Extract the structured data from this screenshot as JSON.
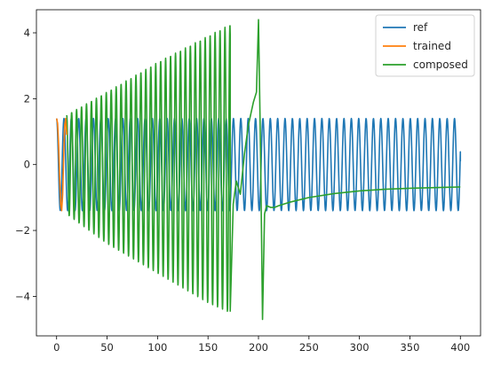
{
  "chart_data": {
    "type": "line",
    "title": "",
    "xlabel": "",
    "ylabel": "",
    "xlim": [
      -20,
      420
    ],
    "ylim": [
      -5.2,
      4.7
    ],
    "xticks": [
      0,
      50,
      100,
      150,
      200,
      250,
      300,
      350,
      400
    ],
    "yticks": [
      -4,
      -2,
      0,
      2,
      4
    ],
    "grid": false,
    "legend_position": "top-right",
    "series": [
      {
        "name": "ref",
        "color": "#1f77b4",
        "description_points": [
          [
            0,
            1.4
          ],
          [
            400,
            0.1
          ]
        ],
        "amplitude": 1.4,
        "period": 7.3,
        "x_range": [
          0,
          400
        ]
      },
      {
        "name": "trained",
        "color": "#ff7f0e",
        "x": [
          0,
          1,
          2,
          3,
          4,
          5,
          6,
          7,
          8,
          9,
          10
        ],
        "y": [
          1.4,
          1.25,
          0.6,
          -0.4,
          -1.2,
          -1.4,
          -0.9,
          0.2,
          1.2,
          1.4,
          0.9
        ]
      },
      {
        "name": "composed",
        "color": "#2ca02c",
        "envelope_x": [
          10,
          50,
          100,
          150,
          172
        ],
        "envelope_y": [
          1.5,
          2.2,
          3.1,
          3.9,
          4.25
        ],
        "envelope_y_min": [
          -1.5,
          -2.4,
          -3.3,
          -4.2,
          -4.5
        ],
        "tail_x": [
          172,
          175,
          178,
          182,
          186,
          190,
          195,
          198,
          200,
          202,
          204,
          206,
          208,
          212,
          216,
          220,
          230,
          250,
          275,
          300,
          325,
          350,
          375,
          400
        ],
        "tail_y": [
          -4.45,
          -1.2,
          -0.5,
          -0.9,
          0.3,
          1.2,
          1.9,
          2.2,
          4.4,
          0.5,
          -4.7,
          -1.5,
          -1.25,
          -1.3,
          -1.3,
          -1.25,
          -1.15,
          -1.0,
          -0.88,
          -0.8,
          -0.75,
          -0.72,
          -0.7,
          -0.68
        ]
      }
    ]
  }
}
